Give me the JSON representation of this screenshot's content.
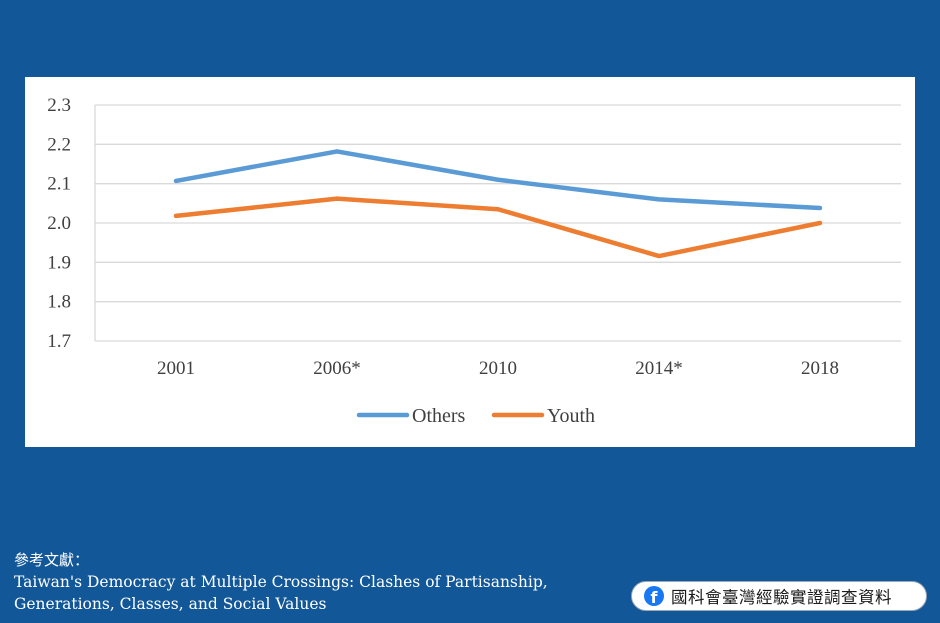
{
  "chart_data": {
    "type": "line",
    "categories": [
      "2001",
      "2006*",
      "2010",
      "2014*",
      "2018"
    ],
    "series": [
      {
        "name": "Others",
        "values": [
          2.107,
          2.182,
          2.11,
          2.06,
          2.038
        ],
        "color": "#5b9bd5"
      },
      {
        "name": "Youth",
        "values": [
          2.018,
          2.062,
          2.035,
          1.916,
          2.0
        ],
        "color": "#ed7d31"
      }
    ],
    "ylim": [
      1.7,
      2.3
    ],
    "yticks": [
      "1.7",
      "1.8",
      "1.9",
      "2.0",
      "2.1",
      "2.2",
      "2.3"
    ],
    "grid": true,
    "legend": "bottom-center"
  },
  "reference": {
    "heading": "參考文獻：",
    "line1": "Taiwan's Democracy at Multiple Crossings: Clashes of Partisanship,",
    "line2": "Generations, Classes, and Social Values"
  },
  "badge": {
    "icon": "facebook-icon",
    "text": "國科會臺灣經驗實證調查資料"
  }
}
